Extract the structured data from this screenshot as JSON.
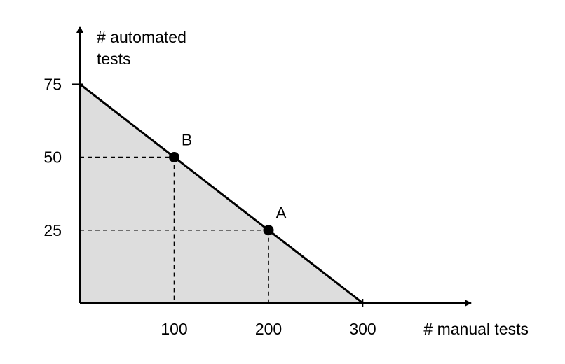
{
  "chart_data": {
    "type": "area",
    "title": "",
    "xlabel": "# manual tests",
    "ylabel_lines": [
      "# automated",
      "tests"
    ],
    "xlim": [
      0,
      300
    ],
    "ylim": [
      0,
      75
    ],
    "x_ticks": [
      {
        "value": 100,
        "label": "100"
      },
      {
        "value": 200,
        "label": "200"
      },
      {
        "value": 300,
        "label": "300"
      }
    ],
    "y_ticks": [
      {
        "value": 25,
        "label": "25"
      },
      {
        "value": 50,
        "label": "50"
      },
      {
        "value": 75,
        "label": "75"
      }
    ],
    "frontier": [
      {
        "x": 0,
        "y": 75
      },
      {
        "x": 300,
        "y": 0
      }
    ],
    "points": [
      {
        "label": "B",
        "x": 100,
        "y": 50
      },
      {
        "label": "A",
        "x": 200,
        "y": 25
      }
    ],
    "grid": false,
    "colors": {
      "fill": "#dddddd",
      "line": "#000000",
      "point": "#000000"
    }
  }
}
